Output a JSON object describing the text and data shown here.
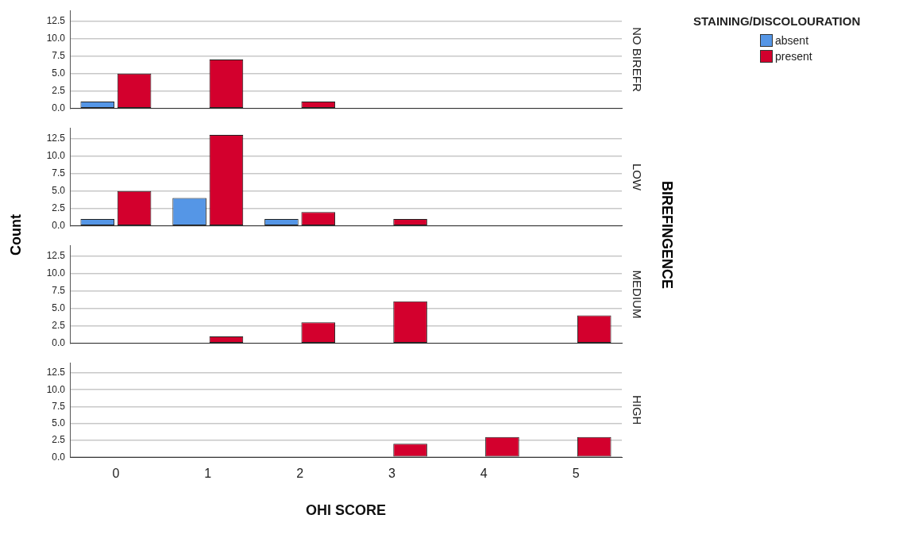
{
  "chart_data": [
    {
      "type": "bar",
      "categories": [
        "0",
        "1",
        "2",
        "3",
        "4",
        "5"
      ],
      "y2label": "NO BIREFR",
      "legend": "top right",
      "legend_title": "STAINING/DISCOLOURATION",
      "grid": "y",
      "tick_labels": "y",
      "ylim": [
        0,
        14
      ],
      "yticks": [
        {
          "value": 0,
          "label": "0.0"
        },
        {
          "value": 2.5,
          "label": "2.5"
        },
        {
          "value": 5,
          "label": "5.0"
        },
        {
          "value": 7.5,
          "label": "7.5"
        },
        {
          "value": 10,
          "label": "10.0"
        },
        {
          "value": 12.5,
          "label": "12.5"
        }
      ],
      "series": [
        {
          "name": "absent",
          "color": "#5596e6",
          "values": [
            1,
            null,
            null,
            null,
            null,
            null
          ]
        },
        {
          "name": "present",
          "color": "#d3002d",
          "values": [
            5,
            7,
            1,
            null,
            null,
            null
          ]
        }
      ]
    },
    {
      "type": "bar",
      "categories": [
        "0",
        "1",
        "2",
        "3",
        "4",
        "5"
      ],
      "y2label": "LOW",
      "ylabel": "Count",
      "annotations": [
        "BIREFINGENCE"
      ],
      "grid": "y",
      "tick_labels": "y",
      "ylim": [
        0,
        14
      ],
      "yticks": [
        {
          "value": 0,
          "label": "0.0"
        },
        {
          "value": 2.5,
          "label": "2.5"
        },
        {
          "value": 5,
          "label": "5.0"
        },
        {
          "value": 7.5,
          "label": "7.5"
        },
        {
          "value": 10,
          "label": "10.0"
        },
        {
          "value": 12.5,
          "label": "12.5"
        }
      ],
      "series": [
        {
          "color": "#5596e6",
          "values": [
            1,
            4,
            1,
            0,
            null,
            null
          ]
        },
        {
          "color": "#d3002d",
          "values": [
            5,
            13,
            2,
            1,
            null,
            null
          ]
        }
      ]
    },
    {
      "type": "bar",
      "categories": [
        "0",
        "1",
        "2",
        "3",
        "4",
        "5"
      ],
      "y2label": "MEDIUM",
      "grid": "y",
      "tick_labels": "y",
      "ylim": [
        0,
        14
      ],
      "yticks": [
        {
          "value": 0,
          "label": "0.0"
        },
        {
          "value": 2.5,
          "label": "2.5"
        },
        {
          "value": 5,
          "label": "5.0"
        },
        {
          "value": 7.5,
          "label": "7.5"
        },
        {
          "value": 10,
          "label": "10.0"
        },
        {
          "value": 12.5,
          "label": "12.5"
        }
      ],
      "series": [
        {
          "color": "#5596e6",
          "values": [
            null,
            null,
            null,
            null,
            null,
            0
          ]
        },
        {
          "color": "#d3002d",
          "values": [
            null,
            1,
            3,
            6,
            null,
            4
          ]
        }
      ]
    },
    {
      "type": "bar",
      "categories": [
        "0",
        "1",
        "2",
        "3",
        "4",
        "5"
      ],
      "y2label": "HIGH",
      "xlabel": "OHI SCORE",
      "grid": "y",
      "ylim": [
        0,
        14
      ],
      "yticks": [
        {
          "value": 0,
          "label": "0.0"
        },
        {
          "value": 2.5,
          "label": "2.5"
        },
        {
          "value": 5,
          "label": "5.0"
        },
        {
          "value": 7.5,
          "label": "7.5"
        },
        {
          "value": 10,
          "label": "10.0"
        },
        {
          "value": 12.5,
          "label": "12.5"
        }
      ],
      "series": [
        {
          "color": "#5596e6",
          "values": [
            null,
            null,
            null,
            null,
            0,
            null
          ]
        },
        {
          "color": "#d3002d",
          "values": [
            null,
            null,
            null,
            2,
            3,
            3
          ]
        }
      ]
    }
  ]
}
